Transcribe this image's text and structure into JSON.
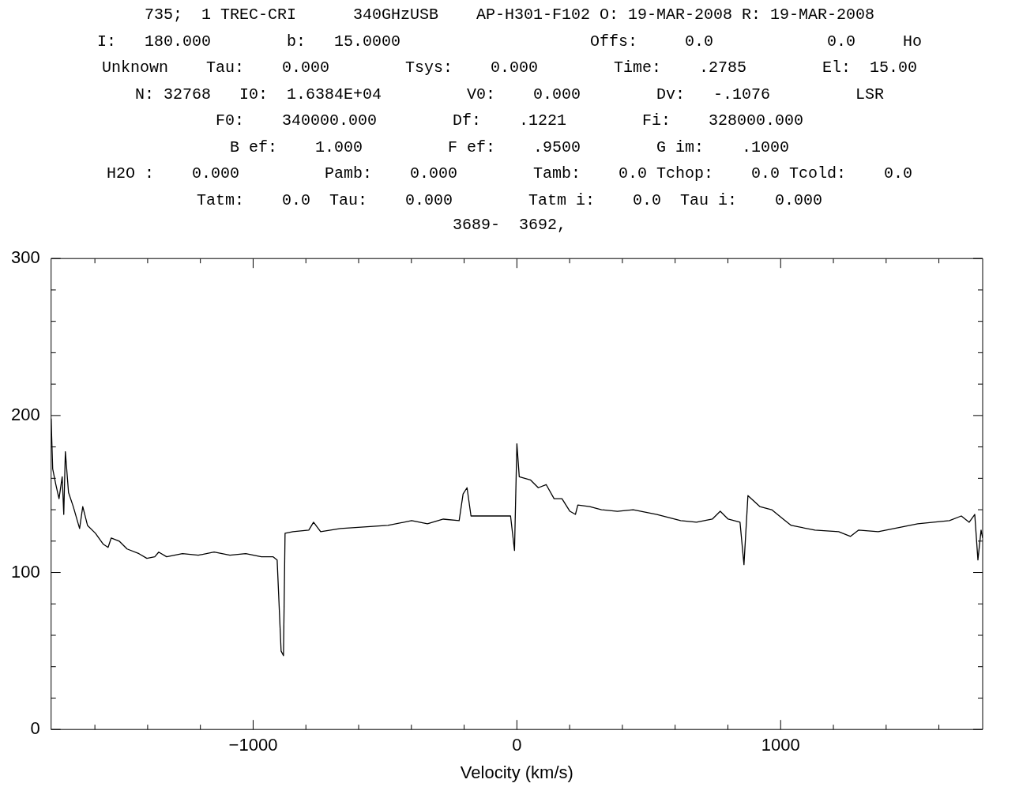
{
  "chart_data": {
    "type": "line",
    "title": "3689-  3692,",
    "xlabel": "Velocity (km/s)",
    "annotations": [
      "735;  1 TREC-CRI      340GHzUSB    AP-H301-F102 O: 19-MAR-2008 R: 19-MAR-2008",
      "I:   180.000        b:   15.0000                    Offs:     0.0            0.0     Ho",
      "Unknown    Tau:    0.000        Tsys:    0.000        Time:    .2785        El:  15.00",
      "N: 32768   I0:  1.6384E+04         V0:    0.000        Dv:   -.1076         LSR",
      "F0:    340000.000        Df:    .1221        Fi:    328000.000",
      "B ef:    1.000         F ef:    .9500        G im:    .1000",
      "H2O :    0.000         Pamb:    0.000        Tamb:    0.0 Tchop:    0.0 Tcold:    0.0",
      "Tatm:    0.0  Tau:    0.000        Tatm i:    0.0  Tau i:    0.000"
    ],
    "xlim": [
      -1766,
      1766
    ],
    "xticks": [
      {
        "value": -1600,
        "label": null
      },
      {
        "value": -1400,
        "label": null
      },
      {
        "value": -1200,
        "label": null
      },
      -1000,
      {
        "value": -800,
        "label": null
      },
      {
        "value": -600,
        "label": null
      },
      {
        "value": -400,
        "label": null
      },
      {
        "value": -200,
        "label": null
      },
      0,
      {
        "value": 200,
        "label": null
      },
      {
        "value": 400,
        "label": null
      },
      {
        "value": 600,
        "label": null
      },
      {
        "value": 800,
        "label": null
      },
      1000,
      {
        "value": 1200,
        "label": null
      },
      {
        "value": 1400,
        "label": null
      },
      {
        "value": 1600,
        "label": null
      }
    ],
    "ylim": [
      0,
      300
    ],
    "yticks": [
      0,
      {
        "value": 20,
        "label": null
      },
      {
        "value": 40,
        "label": null
      },
      {
        "value": 60,
        "label": null
      },
      {
        "value": 80,
        "label": null
      },
      100,
      {
        "value": 120,
        "label": null
      },
      {
        "value": 140,
        "label": null
      },
      {
        "value": 160,
        "label": null
      },
      {
        "value": 180,
        "label": null
      },
      200,
      {
        "value": 220,
        "label": null
      },
      {
        "value": 240,
        "label": null
      },
      {
        "value": 260,
        "label": null
      },
      {
        "value": 280,
        "label": null
      },
      300
    ],
    "marker": "none",
    "line_style": "solid",
    "series": [
      {
        "color": "#000000",
        "x": [
          -1766,
          -1760,
          -1748,
          -1736,
          -1724,
          -1718,
          -1712,
          -1700,
          -1682,
          -1658,
          -1646,
          -1628,
          -1598,
          -1568,
          -1550,
          -1538,
          -1508,
          -1478,
          -1433,
          -1403,
          -1373,
          -1358,
          -1328,
          -1268,
          -1208,
          -1148,
          -1088,
          -1028,
          -969,
          -924,
          -909,
          -894,
          -885,
          -879,
          -849,
          -789,
          -771,
          -744,
          -669,
          -579,
          -489,
          -399,
          -339,
          -279,
          -219,
          -204,
          -189,
          -174,
          -99,
          -24,
          -9,
          0,
          9,
          51,
          81,
          111,
          141,
          171,
          201,
          222,
          231,
          276,
          321,
          381,
          441,
          531,
          621,
          681,
          741,
          771,
          801,
          846,
          861,
          876,
          921,
          966,
          1010,
          1040,
          1130,
          1220,
          1265,
          1295,
          1370,
          1460,
          1520,
          1580,
          1640,
          1685,
          1715,
          1736,
          1748,
          1760,
          1766
        ],
        "values": [
          198,
          166,
          156,
          147,
          161,
          137,
          177,
          151,
          142,
          128,
          142,
          130,
          125,
          118,
          116,
          122,
          120,
          115,
          112,
          109,
          110,
          113,
          110,
          112,
          111,
          113,
          111,
          112,
          110,
          110,
          108,
          50,
          47,
          125,
          126,
          127,
          132,
          126,
          128,
          129,
          130,
          133,
          131,
          134,
          133,
          150,
          154,
          136,
          136,
          136,
          114,
          182,
          161,
          159,
          154,
          156,
          147,
          147,
          139,
          137,
          143,
          142,
          140,
          139,
          140,
          137,
          133,
          132,
          134,
          139,
          134,
          132,
          105,
          149,
          142,
          140,
          134,
          130,
          127,
          126,
          123,
          127,
          126,
          129,
          131,
          132,
          133,
          136,
          132,
          137,
          108,
          127,
          122
        ]
      }
    ]
  }
}
